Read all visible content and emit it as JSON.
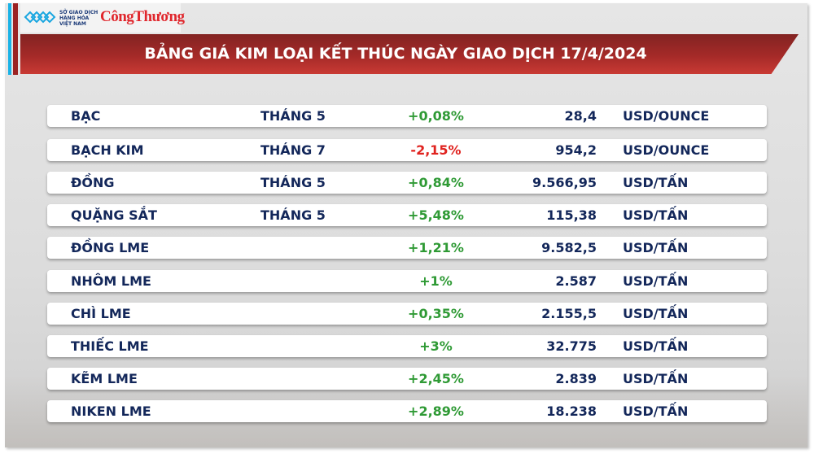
{
  "header": {
    "logo_sgd_lines": [
      "SỞ GIAO DỊCH",
      "HÀNG HÓA",
      "VIỆT NAM"
    ],
    "logo_congthuong": "CôngThương",
    "title": "BẢNG GIÁ KIM LOẠI KẾT THÚC NGÀY GIAO DỊCH 17/4/2024"
  },
  "colors": {
    "up": "#2f9a35",
    "down": "#e0231f",
    "text": "#13275a",
    "banner": "#a52a28"
  },
  "rows": [
    {
      "name": "BẠC",
      "month": "THÁNG 5",
      "change": "+0,08%",
      "direction": "up",
      "price": "28,4",
      "unit": "USD/OUNCE"
    },
    {
      "name": "BẠCH KIM",
      "month": "THÁNG 7",
      "change": "-2,15%",
      "direction": "down",
      "price": "954,2",
      "unit": "USD/OUNCE"
    },
    {
      "name": "ĐỒNG",
      "month": "THÁNG 5",
      "change": "+0,84%",
      "direction": "up",
      "price": "9.566,95",
      "unit": "USD/TẤN"
    },
    {
      "name": "QUẶNG SẮT",
      "month": "THÁNG 5",
      "change": "+5,48%",
      "direction": "up",
      "price": "115,38",
      "unit": "USD/TẤN"
    },
    {
      "name": "ĐỒNG LME",
      "month": "",
      "change": "+1,21%",
      "direction": "up",
      "price": "9.582,5",
      "unit": "USD/TẤN"
    },
    {
      "name": "NHÔM LME",
      "month": "",
      "change": "+1%",
      "direction": "up",
      "price": "2.587",
      "unit": "USD/TẤN"
    },
    {
      "name": "CHÌ LME",
      "month": "",
      "change": "+0,35%",
      "direction": "up",
      "price": "2.155,5",
      "unit": "USD/TẤN"
    },
    {
      "name": "THIẾC LME",
      "month": "",
      "change": "+3%",
      "direction": "up",
      "price": "32.775",
      "unit": "USD/TẤN"
    },
    {
      "name": "KẼM LME",
      "month": "",
      "change": "+2,45%",
      "direction": "up",
      "price": "2.839",
      "unit": "USD/TẤN"
    },
    {
      "name": "NIKEN LME",
      "month": "",
      "change": "+2,89%",
      "direction": "up",
      "price": "18.238",
      "unit": "USD/TẤN"
    }
  ]
}
